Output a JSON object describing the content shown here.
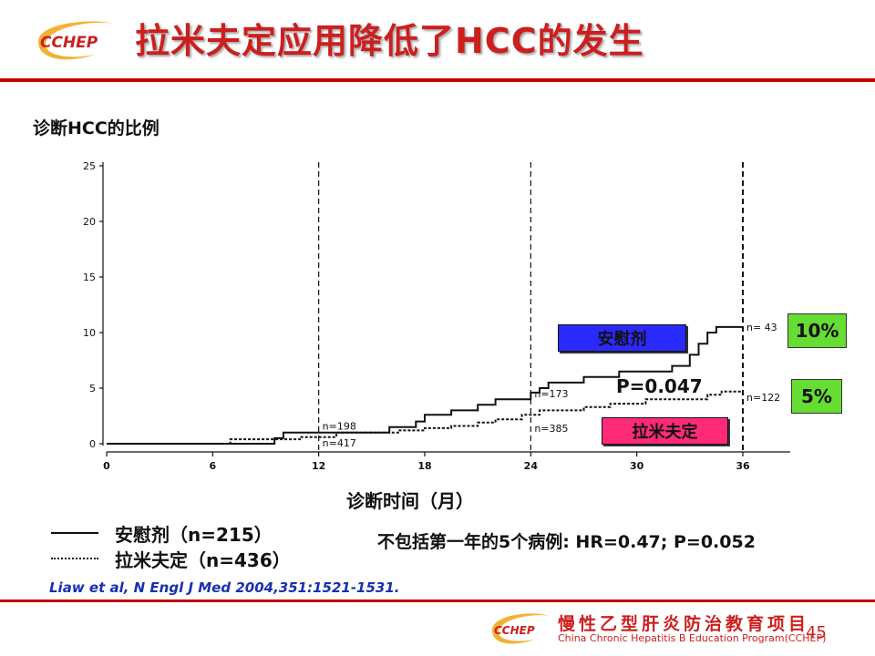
{
  "header": {
    "logo_text": "CCHEP",
    "title": "拉米夫定应用降低了HCC的发生"
  },
  "chart_data": {
    "type": "line",
    "title": "诊断HCC的比例",
    "xlabel": "诊断时间（月）",
    "ylabel": "",
    "xlim": [
      0,
      36
    ],
    "ylim": [
      0,
      25
    ],
    "x_ticks": [
      0,
      6,
      12,
      18,
      24,
      30,
      36
    ],
    "y_ticks": [
      0,
      5,
      10,
      15,
      20,
      25
    ],
    "dashed_reference_x": [
      12,
      24,
      36
    ],
    "series": [
      {
        "name": "安慰剂（n=215）",
        "box_label": "安慰剂",
        "style": "solid",
        "end_value_label": "10%",
        "points": [
          [
            0,
            0
          ],
          [
            9.5,
            0
          ],
          [
            9.5,
            0.5
          ],
          [
            10,
            0.5
          ],
          [
            10,
            1
          ],
          [
            16,
            1
          ],
          [
            16,
            1.5
          ],
          [
            17.5,
            1.5
          ],
          [
            17.5,
            2
          ],
          [
            18,
            2
          ],
          [
            18,
            2.6
          ],
          [
            19.5,
            2.6
          ],
          [
            19.5,
            3
          ],
          [
            21,
            3
          ],
          [
            21,
            3.5
          ],
          [
            22,
            3.5
          ],
          [
            22,
            4
          ],
          [
            24,
            4
          ],
          [
            24,
            4.6
          ],
          [
            24.5,
            4.6
          ],
          [
            24.5,
            5
          ],
          [
            25,
            5
          ],
          [
            25,
            5.5
          ],
          [
            27,
            5.5
          ],
          [
            27,
            6
          ],
          [
            29,
            6
          ],
          [
            29,
            6.5
          ],
          [
            32,
            6.5
          ],
          [
            32,
            7
          ],
          [
            33,
            7
          ],
          [
            33,
            8
          ],
          [
            33.5,
            8
          ],
          [
            33.5,
            9
          ],
          [
            34,
            9
          ],
          [
            34,
            10
          ],
          [
            34.5,
            10
          ],
          [
            34.5,
            10.5
          ],
          [
            36,
            10.5
          ]
        ]
      },
      {
        "name": "拉米夫定（n=436）",
        "box_label": "拉米夫定",
        "style": "dotted",
        "end_value_label": "5%",
        "points": [
          [
            0,
            0
          ],
          [
            7,
            0
          ],
          [
            7,
            0.4
          ],
          [
            11,
            0.4
          ],
          [
            11,
            0.6
          ],
          [
            13,
            0.6
          ],
          [
            13,
            1
          ],
          [
            16.5,
            1
          ],
          [
            16.5,
            1.2
          ],
          [
            18,
            1.2
          ],
          [
            18,
            1.4
          ],
          [
            19.5,
            1.4
          ],
          [
            19.5,
            1.6
          ],
          [
            21,
            1.6
          ],
          [
            21,
            1.9
          ],
          [
            22,
            1.9
          ],
          [
            22,
            2.2
          ],
          [
            23.5,
            2.2
          ],
          [
            23.5,
            2.6
          ],
          [
            24.5,
            2.6
          ],
          [
            24.5,
            3
          ],
          [
            27,
            3
          ],
          [
            27,
            3.3
          ],
          [
            28.5,
            3.3
          ],
          [
            28.5,
            3.6
          ],
          [
            30.5,
            3.6
          ],
          [
            30.5,
            4
          ],
          [
            34,
            4
          ],
          [
            34,
            4.4
          ],
          [
            34.8,
            4.4
          ],
          [
            34.8,
            4.7
          ],
          [
            36,
            4.7
          ]
        ]
      }
    ],
    "risk_annotations": [
      {
        "text": "n=198",
        "x": 12,
        "y": 1.6
      },
      {
        "text": "n=417",
        "x": 12,
        "y": 0.1
      },
      {
        "text": "n=173",
        "x": 24,
        "y": 4.5
      },
      {
        "text": "n=385",
        "x": 24,
        "y": 1.4
      },
      {
        "text": "n= 43",
        "x": 36,
        "y": 10.5
      },
      {
        "text": "n=122",
        "x": 36,
        "y": 4.2
      }
    ],
    "p_value": "P=0.047"
  },
  "legend": {
    "placebo": "安慰剂（n=215）",
    "lamivudine": "拉米夫定（n=436）"
  },
  "note": "不包括第一年的5个病例: HR=0.47; P=0.052",
  "citation": "Liaw et al, N Engl J Med 2004,351:1521-1531.",
  "footer": {
    "logo_text": "CCHEP",
    "program_cn": "慢性乙型肝炎防治教育项目",
    "program_en": "China Chronic Hepatitis B Education Program(CCHEP)",
    "page_number": "45"
  },
  "colors": {
    "accent": "#c00000",
    "placebo_box": "#2a2aff",
    "lamivudine_box": "#ff2a78",
    "percent_box": "#66dd33",
    "citation": "#1a2fb0"
  }
}
